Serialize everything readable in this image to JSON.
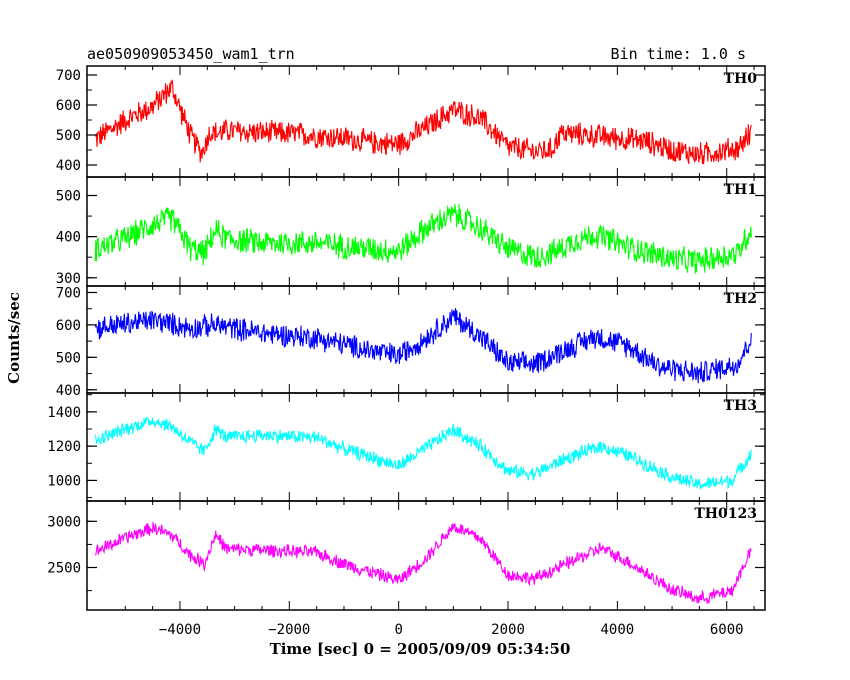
{
  "header": {
    "title": "ae050909053450_wam1_trn",
    "bin_time": "Bin time: 1.0 s"
  },
  "chart_data": {
    "type": "line",
    "xlabel": "Time [sec] 0 = 2005/09/09 05:34:50",
    "ylabel": "Counts/sec",
    "xlim": [
      -5700,
      6700
    ],
    "xticks": [
      -4000,
      -2000,
      0,
      2000,
      4000,
      6000
    ],
    "xtick_labels": [
      "−4000",
      "−2000",
      "0",
      "2000",
      "4000",
      "6000"
    ],
    "grid": false,
    "panels": [
      {
        "name": "TH0",
        "color": "#ff0000",
        "ylim": [
          360,
          730
        ],
        "yticks": [
          400,
          500,
          600,
          700
        ],
        "ytick_labels": [
          "400",
          "500",
          "600",
          "700"
        ],
        "noise": 45,
        "x": [
          -5550,
          -5000,
          -4500,
          -4150,
          -3800,
          -3600,
          -3450,
          -3300,
          -3150,
          -2800,
          -2000,
          -1000,
          -500,
          0,
          500,
          1000,
          1500,
          2000,
          2500,
          2800,
          2950,
          3100,
          4000,
          4500,
          5000,
          5500,
          6200,
          6450
        ],
        "y": [
          485,
          550,
          595,
          660,
          495,
          440,
          510,
          505,
          515,
          510,
          505,
          490,
          475,
          470,
          525,
          585,
          555,
          460,
          445,
          450,
          505,
          505,
          490,
          480,
          450,
          435,
          455,
          510
        ]
      },
      {
        "name": "TH1",
        "color": "#00ff00",
        "ylim": [
          280,
          545
        ],
        "yticks": [
          300,
          400,
          500
        ],
        "ytick_labels": [
          "300",
          "400",
          "500"
        ],
        "noise": 35,
        "x": [
          -5550,
          -5000,
          -4500,
          -4150,
          -3800,
          -3550,
          -3350,
          -3150,
          -2500,
          -1500,
          -500,
          0,
          500,
          1000,
          1500,
          2000,
          2500,
          2900,
          3200,
          3600,
          4200,
          5000,
          5500,
          6200,
          6450
        ],
        "y": [
          370,
          395,
          430,
          445,
          370,
          360,
          415,
          395,
          385,
          385,
          370,
          365,
          420,
          455,
          420,
          370,
          350,
          365,
          390,
          405,
          375,
          345,
          340,
          360,
          420
        ]
      },
      {
        "name": "TH2",
        "color": "#0000ff",
        "ylim": [
          390,
          720
        ],
        "yticks": [
          400,
          500,
          600,
          700
        ],
        "ytick_labels": [
          "400",
          "500",
          "600",
          "700"
        ],
        "noise": 40,
        "x": [
          -5550,
          -4500,
          -3800,
          -3350,
          -2500,
          -1500,
          -500,
          0,
          500,
          1000,
          1500,
          2000,
          2500,
          3000,
          3600,
          4200,
          4800,
          5500,
          6200,
          6450
        ],
        "y": [
          590,
          615,
          590,
          600,
          575,
          560,
          520,
          505,
          560,
          625,
          565,
          480,
          480,
          520,
          565,
          535,
          470,
          450,
          480,
          560
        ]
      },
      {
        "name": "TH3",
        "color": "#00ffff",
        "ylim": [
          880,
          1510
        ],
        "yticks": [
          1000,
          1200,
          1400
        ],
        "ytick_labels": [
          "1000",
          "1200",
          "1400"
        ],
        "noise": 45,
        "x": [
          -5550,
          -5000,
          -4500,
          -4150,
          -3800,
          -3550,
          -3350,
          -3150,
          -2500,
          -1500,
          -1000,
          0,
          500,
          1000,
          1500,
          2000,
          2500,
          3000,
          3700,
          4200,
          5000,
          5500,
          6100,
          6450
        ],
        "y": [
          1230,
          1300,
          1350,
          1315,
          1220,
          1170,
          1300,
          1250,
          1265,
          1250,
          1185,
          1085,
          1190,
          1295,
          1200,
          1055,
          1040,
          1120,
          1200,
          1145,
          1020,
          975,
          1000,
          1160
        ]
      },
      {
        "name": "TH0123",
        "color": "#ff00ff",
        "ylim": [
          2040,
          3220
        ],
        "yticks": [
          2500,
          3000
        ],
        "ytick_labels": [
          "2500",
          "3000"
        ],
        "noise": 80,
        "x": [
          -5550,
          -5000,
          -4500,
          -4150,
          -3800,
          -3550,
          -3350,
          -3150,
          -2500,
          -1500,
          -1000,
          0,
          500,
          1000,
          1500,
          2000,
          2500,
          3000,
          3700,
          4200,
          5000,
          5500,
          6100,
          6450
        ],
        "y": [
          2670,
          2820,
          2930,
          2850,
          2630,
          2540,
          2860,
          2700,
          2690,
          2660,
          2540,
          2360,
          2600,
          2950,
          2810,
          2420,
          2380,
          2520,
          2710,
          2560,
          2260,
          2160,
          2250,
          2700
        ]
      }
    ]
  }
}
